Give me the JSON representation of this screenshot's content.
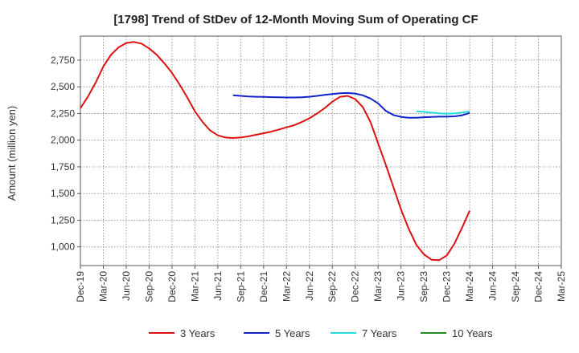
{
  "chart_data": {
    "type": "line",
    "title": "[1798]  Trend of StDev of 12-Month Moving Sum of Operating CF",
    "ylabel": "Amount (million yen)",
    "xlabel": "",
    "ylim": [
      825,
      2975
    ],
    "yticks": [
      1000,
      1250,
      1500,
      1750,
      2000,
      2250,
      2500,
      2750
    ],
    "ytick_labels": [
      "1,000",
      "1,250",
      "1,500",
      "1,750",
      "2,000",
      "2,250",
      "2,500",
      "2,750"
    ],
    "x_start": "Dec-19",
    "x_end": "Mar-25",
    "xtick_labels": [
      "Dec-19",
      "Mar-20",
      "Jun-20",
      "Sep-20",
      "Dec-20",
      "Mar-21",
      "Jun-21",
      "Sep-21",
      "Dec-21",
      "Mar-22",
      "Jun-22",
      "Sep-22",
      "Dec-22",
      "Mar-23",
      "Jun-23",
      "Sep-23",
      "Dec-23",
      "Mar-24",
      "Jun-24",
      "Sep-24",
      "Dec-24",
      "Mar-25"
    ],
    "grid": true,
    "legend_position": "bottom",
    "series": [
      {
        "name": "3 Years",
        "color": "#dd1111",
        "x": [
          "Dec-19",
          "Jan-20",
          "Feb-20",
          "Mar-20",
          "Apr-20",
          "May-20",
          "Jun-20",
          "Jul-20",
          "Aug-20",
          "Sep-20",
          "Oct-20",
          "Nov-20",
          "Dec-20",
          "Jan-21",
          "Feb-21",
          "Mar-21",
          "Apr-21",
          "May-21",
          "Jun-21",
          "Jul-21",
          "Aug-21",
          "Sep-21",
          "Oct-21",
          "Nov-21",
          "Dec-21",
          "Jan-22",
          "Feb-22",
          "Mar-22",
          "Apr-22",
          "May-22",
          "Jun-22",
          "Jul-22",
          "Aug-22",
          "Sep-22",
          "Oct-22",
          "Nov-22",
          "Dec-22",
          "Jan-23",
          "Feb-23",
          "Mar-23",
          "Apr-23",
          "May-23",
          "Jun-23",
          "Jul-23",
          "Aug-23",
          "Sep-23",
          "Oct-23",
          "Nov-23",
          "Dec-23",
          "Jan-24",
          "Feb-24",
          "Mar-24"
        ],
        "values": [
          2300,
          2410,
          2540,
          2690,
          2800,
          2870,
          2910,
          2920,
          2905,
          2860,
          2800,
          2720,
          2630,
          2520,
          2400,
          2270,
          2170,
          2090,
          2045,
          2025,
          2020,
          2025,
          2035,
          2050,
          2065,
          2080,
          2100,
          2120,
          2140,
          2170,
          2205,
          2250,
          2300,
          2360,
          2405,
          2415,
          2385,
          2310,
          2170,
          1970,
          1770,
          1560,
          1350,
          1170,
          1020,
          930,
          880,
          875,
          920,
          1030,
          1180,
          1340
        ]
      },
      {
        "name": "5 Years",
        "color": "#1122cc",
        "x": [
          "Aug-21",
          "Sep-21",
          "Oct-21",
          "Nov-21",
          "Dec-21",
          "Jan-22",
          "Feb-22",
          "Mar-22",
          "Apr-22",
          "May-22",
          "Jun-22",
          "Jul-22",
          "Aug-22",
          "Sep-22",
          "Oct-22",
          "Nov-22",
          "Dec-22",
          "Jan-23",
          "Feb-23",
          "Mar-23",
          "Apr-23",
          "May-23",
          "Jun-23",
          "Jul-23",
          "Aug-23",
          "Sep-23",
          "Oct-23",
          "Nov-23",
          "Dec-23",
          "Jan-24",
          "Feb-24",
          "Mar-24"
        ],
        "values": [
          2420,
          2415,
          2410,
          2407,
          2405,
          2403,
          2402,
          2400,
          2400,
          2402,
          2407,
          2415,
          2425,
          2432,
          2440,
          2442,
          2437,
          2420,
          2390,
          2345,
          2275,
          2235,
          2218,
          2210,
          2210,
          2215,
          2218,
          2220,
          2220,
          2223,
          2233,
          2255
        ]
      },
      {
        "name": "7 Years",
        "color": "#22dddd",
        "x": [
          "Aug-23",
          "Sep-23",
          "Oct-23",
          "Nov-23",
          "Dec-23",
          "Jan-24",
          "Feb-24",
          "Mar-24"
        ],
        "values": [
          2270,
          2265,
          2258,
          2252,
          2248,
          2250,
          2258,
          2270
        ]
      },
      {
        "name": "10 Years",
        "color": "#228822",
        "x": [],
        "values": []
      }
    ]
  }
}
